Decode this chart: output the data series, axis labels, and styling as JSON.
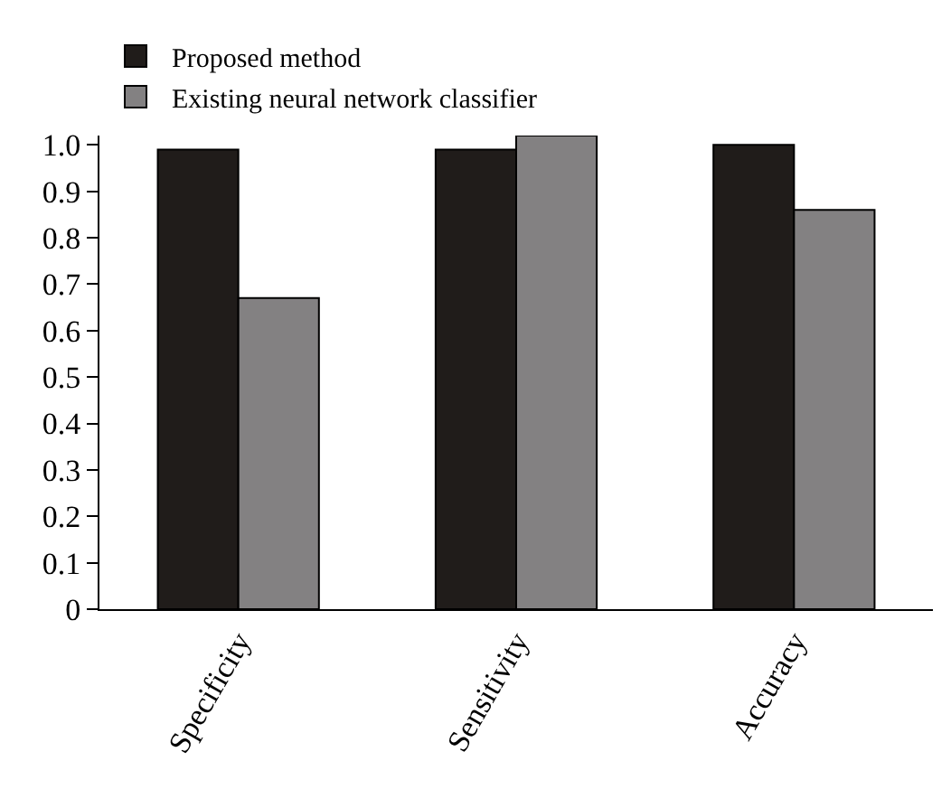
{
  "chart_data": {
    "type": "bar",
    "categories": [
      "Specificity",
      "Sensitivity",
      "Accuracy"
    ],
    "series": [
      {
        "name": "Proposed method",
        "color": "#201c1a",
        "values": [
          0.99,
          0.99,
          1.0
        ]
      },
      {
        "name": "Existing neural network classifier",
        "color": "#838182",
        "values": [
          0.67,
          1.02,
          0.86
        ]
      }
    ],
    "ylim": [
      0,
      1.02
    ],
    "yticks": [
      0,
      0.1,
      0.2,
      0.3,
      0.4,
      0.5,
      0.6,
      0.7,
      0.8,
      0.9,
      {
        "value": 1.0,
        "label": "1.0"
      }
    ],
    "legend": "top left"
  }
}
